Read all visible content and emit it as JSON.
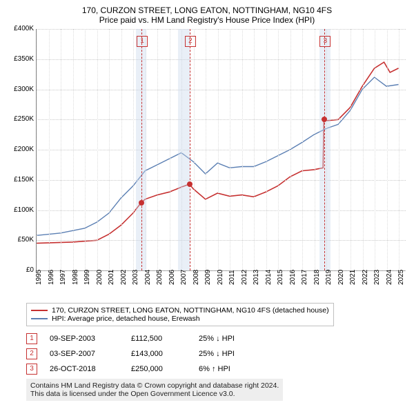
{
  "title": {
    "line1": "170, CURZON STREET, LONG EATON, NOTTINGHAM, NG10 4FS",
    "line2": "Price paid vs. HM Land Registry's House Price Index (HPI)"
  },
  "chart": {
    "type": "line",
    "xlim": [
      1995,
      2025.6
    ],
    "ylim": [
      0,
      400000
    ],
    "ytick_step": 50000,
    "yticks_labels": [
      "£0",
      "£50K",
      "£100K",
      "£150K",
      "£200K",
      "£250K",
      "£300K",
      "£350K",
      "£400K"
    ],
    "xticks": [
      1995,
      1996,
      1997,
      1998,
      1999,
      2000,
      2001,
      2002,
      2003,
      2004,
      2005,
      2006,
      2007,
      2008,
      2009,
      2010,
      2011,
      2012,
      2013,
      2014,
      2015,
      2016,
      2017,
      2018,
      2019,
      2020,
      2021,
      2022,
      2023,
      2024,
      2025
    ],
    "grid_color": "#dcdcdc",
    "background_color": "#ffffff",
    "shaded_x_ranges": [
      [
        2003.2,
        2004.1
      ],
      [
        2006.7,
        2007.7
      ],
      [
        2018.4,
        2019.3
      ]
    ],
    "shaded_color": "rgba(200,215,235,0.4)",
    "series": [
      {
        "name": "property",
        "color": "#c63030",
        "width": 1.6,
        "points": [
          [
            1995,
            45000
          ],
          [
            1998,
            47000
          ],
          [
            2000,
            50000
          ],
          [
            2001,
            60000
          ],
          [
            2002,
            75000
          ],
          [
            2003,
            95000
          ],
          [
            2003.68,
            112500
          ],
          [
            2004,
            118000
          ],
          [
            2005,
            125000
          ],
          [
            2006,
            130000
          ],
          [
            2007,
            138000
          ],
          [
            2007.67,
            143000
          ],
          [
            2008,
            135000
          ],
          [
            2009,
            118000
          ],
          [
            2010,
            128000
          ],
          [
            2011,
            123000
          ],
          [
            2012,
            125000
          ],
          [
            2013,
            122000
          ],
          [
            2014,
            130000
          ],
          [
            2015,
            140000
          ],
          [
            2016,
            155000
          ],
          [
            2017,
            165000
          ],
          [
            2018,
            167000
          ],
          [
            2018.75,
            170000
          ],
          [
            2018.82,
            250000
          ],
          [
            2019,
            248000
          ],
          [
            2020,
            250000
          ],
          [
            2021,
            270000
          ],
          [
            2022,
            305000
          ],
          [
            2023,
            335000
          ],
          [
            2023.8,
            345000
          ],
          [
            2024.3,
            328000
          ],
          [
            2025,
            335000
          ]
        ]
      },
      {
        "name": "hpi",
        "color": "#5b7fb3",
        "width": 1.4,
        "points": [
          [
            1995,
            58000
          ],
          [
            1997,
            62000
          ],
          [
            1999,
            70000
          ],
          [
            2000,
            80000
          ],
          [
            2001,
            95000
          ],
          [
            2002,
            120000
          ],
          [
            2003,
            140000
          ],
          [
            2004,
            165000
          ],
          [
            2005,
            175000
          ],
          [
            2006,
            185000
          ],
          [
            2007,
            195000
          ],
          [
            2008,
            180000
          ],
          [
            2009,
            160000
          ],
          [
            2010,
            178000
          ],
          [
            2011,
            170000
          ],
          [
            2012,
            172000
          ],
          [
            2013,
            172000
          ],
          [
            2014,
            180000
          ],
          [
            2015,
            190000
          ],
          [
            2016,
            200000
          ],
          [
            2017,
            212000
          ],
          [
            2018,
            225000
          ],
          [
            2019,
            235000
          ],
          [
            2020,
            242000
          ],
          [
            2021,
            265000
          ],
          [
            2022,
            300000
          ],
          [
            2023,
            320000
          ],
          [
            2024,
            305000
          ],
          [
            2025,
            308000
          ]
        ]
      }
    ],
    "sale_markers": [
      {
        "n": "1",
        "x": 2003.68,
        "y": 112500
      },
      {
        "n": "2",
        "x": 2007.67,
        "y": 143000
      },
      {
        "n": "3",
        "x": 2018.82,
        "y": 250000
      }
    ]
  },
  "legend": {
    "items": [
      {
        "color": "#c63030",
        "label": "170, CURZON STREET, LONG EATON, NOTTINGHAM, NG10 4FS (detached house)"
      },
      {
        "color": "#5b7fb3",
        "label": "HPI: Average price, detached house, Erewash"
      }
    ]
  },
  "sales": [
    {
      "n": "1",
      "date": "09-SEP-2003",
      "price": "£112,500",
      "diff": "25% ↓ HPI"
    },
    {
      "n": "2",
      "date": "03-SEP-2007",
      "price": "£143,000",
      "diff": "25% ↓ HPI"
    },
    {
      "n": "3",
      "date": "26-OCT-2018",
      "price": "£250,000",
      "diff": "6% ↑ HPI"
    }
  ],
  "footer": {
    "line1": "Contains HM Land Registry data © Crown copyright and database right 2024.",
    "line2": "This data is licensed under the Open Government Licence v3.0."
  }
}
